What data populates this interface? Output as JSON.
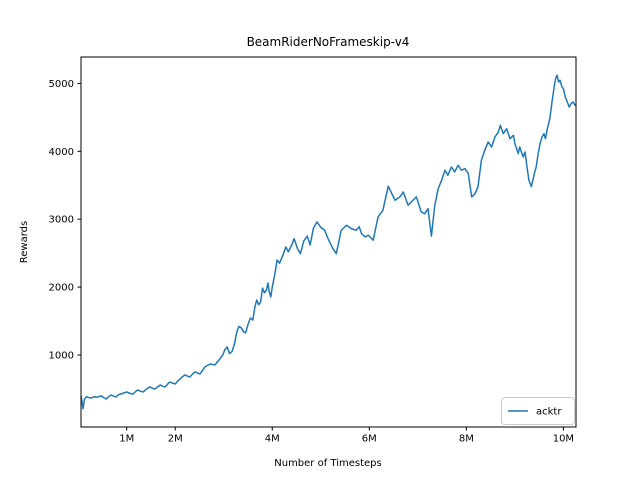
{
  "figure": {
    "background": "#ffffff",
    "spine_color": "#000000"
  },
  "chart_data": {
    "type": "line",
    "title": "BeamRiderNoFrameskip-v4",
    "xlabel": "Number of Timesteps",
    "ylabel": "Rewards",
    "xlim": [
      0.058,
      10.26
    ],
    "ylim": [
      -61,
      5389
    ],
    "grid": false,
    "x_ticks": {
      "values": [
        1,
        2,
        4,
        6,
        8,
        10
      ],
      "labels": [
        "1M",
        "2M",
        "4M",
        "6M",
        "8M",
        "10M"
      ]
    },
    "y_ticks": {
      "values": [
        1000,
        2000,
        3000,
        4000,
        5000
      ],
      "labels": [
        "1000",
        "2000",
        "3000",
        "4000",
        "5000"
      ]
    },
    "legend": {
      "position": "lower right",
      "entries": [
        {
          "label": "acktr",
          "color": "#1f77b4"
        }
      ]
    },
    "series": [
      {
        "name": "acktr",
        "color": "#1f77b4",
        "line_width": 1.5,
        "x_units": "millions of timesteps",
        "x": [
          0.06,
          0.08,
          0.1,
          0.13,
          0.17,
          0.22,
          0.28,
          0.33,
          0.38,
          0.43,
          0.48,
          0.53,
          0.58,
          0.63,
          0.68,
          0.73,
          0.78,
          0.83,
          0.88,
          0.94,
          1.0,
          1.06,
          1.13,
          1.18,
          1.23,
          1.29,
          1.34,
          1.41,
          1.48,
          1.53,
          1.58,
          1.64,
          1.69,
          1.74,
          1.79,
          1.84,
          1.89,
          1.95,
          2.0,
          2.05,
          2.1,
          2.15,
          2.2,
          2.25,
          2.3,
          2.36,
          2.41,
          2.46,
          2.51,
          2.56,
          2.61,
          2.66,
          2.72,
          2.77,
          2.82,
          2.87,
          2.92,
          2.98,
          3.02,
          3.07,
          3.12,
          3.17,
          3.22,
          3.27,
          3.31,
          3.36,
          3.41,
          3.45,
          3.5,
          3.55,
          3.6,
          3.64,
          3.68,
          3.72,
          3.76,
          3.8,
          3.84,
          3.88,
          3.91,
          3.94,
          3.97,
          4.0,
          4.05,
          4.1,
          4.15,
          4.22,
          4.28,
          4.33,
          4.4,
          4.45,
          4.52,
          4.58,
          4.65,
          4.72,
          4.78,
          4.85,
          4.92,
          5.0,
          5.08,
          5.15,
          5.25,
          5.32,
          5.42,
          5.53,
          5.63,
          5.73,
          5.79,
          5.84,
          5.91,
          5.98,
          6.08,
          6.18,
          6.28,
          6.39,
          6.53,
          6.63,
          6.7,
          6.8,
          6.9,
          6.97,
          7.07,
          7.14,
          7.21,
          7.28,
          7.35,
          7.42,
          7.49,
          7.56,
          7.62,
          7.69,
          7.76,
          7.83,
          7.9,
          7.97,
          8.04,
          8.11,
          8.18,
          8.24,
          8.31,
          8.38,
          8.45,
          8.52,
          8.59,
          8.66,
          8.7,
          8.76,
          8.83,
          8.9,
          8.97,
          9.0,
          9.07,
          9.1,
          9.17,
          9.21,
          9.25,
          9.29,
          9.34,
          9.41,
          9.44,
          9.48,
          9.52,
          9.56,
          9.6,
          9.63,
          9.67,
          9.72,
          9.77,
          9.81,
          9.84,
          9.87,
          9.9,
          9.93,
          9.97,
          10.0,
          10.04,
          10.08,
          10.12,
          10.16,
          10.2,
          10.24
        ],
        "y": [
          390,
          300,
          210,
          350,
          385,
          370,
          368,
          385,
          375,
          390,
          396,
          370,
          352,
          390,
          410,
          395,
          381,
          415,
          425,
          440,
          455,
          435,
          425,
          460,
          484,
          465,
          455,
          500,
          529,
          510,
          499,
          530,
          558,
          540,
          529,
          570,
          602,
          585,
          573,
          615,
          646,
          680,
          705,
          690,
          676,
          720,
          750,
          735,
          720,
          770,
          823,
          845,
          867,
          860,
          853,
          900,
          941,
          1000,
          1075,
          1120,
          1020,
          1050,
          1160,
          1340,
          1420,
          1400,
          1340,
          1325,
          1450,
          1545,
          1515,
          1700,
          1810,
          1740,
          1780,
          1985,
          1915,
          1955,
          2060,
          1928,
          1854,
          2002,
          2178,
          2399,
          2350,
          2473,
          2591,
          2520,
          2620,
          2713,
          2566,
          2492,
          2680,
          2750,
          2620,
          2871,
          2959,
          2880,
          2837,
          2713,
          2566,
          2492,
          2837,
          2910,
          2861,
          2837,
          2890,
          2787,
          2738,
          2763,
          2690,
          3033,
          3131,
          3485,
          3279,
          3328,
          3401,
          3205,
          3279,
          3328,
          3106,
          3081,
          3155,
          2750,
          3205,
          3450,
          3573,
          3721,
          3647,
          3769,
          3696,
          3794,
          3721,
          3745,
          3672,
          3328,
          3377,
          3475,
          3868,
          4015,
          4138,
          4064,
          4211,
          4285,
          4383,
          4260,
          4333,
          4186,
          4236,
          4113,
          3966,
          4064,
          3917,
          3990,
          3769,
          3573,
          3480,
          3696,
          3770,
          3966,
          4113,
          4211,
          4260,
          4186,
          4333,
          4481,
          4752,
          4948,
          5070,
          5121,
          5021,
          5046,
          4948,
          4923,
          4800,
          4727,
          4653,
          4702,
          4727,
          4678
        ]
      }
    ]
  }
}
